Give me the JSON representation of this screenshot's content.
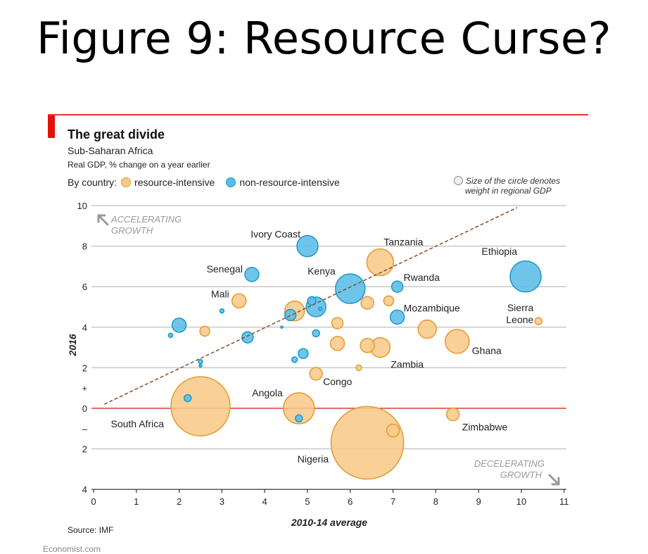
{
  "slide": {
    "title": "Figure 9: Resource Curse?"
  },
  "header": {
    "title": "The great divide",
    "subtitle": "Sub-Saharan Africa",
    "measure": "Real GDP, % change on a year earlier",
    "legend_prefix": "By country:",
    "legend_resource": "resource-intensive",
    "legend_nonresource": "non-resource-intensive",
    "size_note_line1": "Size of the circle denotes",
    "size_note_line2": "weight in regional GDP"
  },
  "footer": {
    "source": "Source: IMF",
    "credit": "Economist.com"
  },
  "colors": {
    "resource_fill": "#f7c98a",
    "resource_stroke": "#e39b2d",
    "nonresource_fill": "#5bbde6",
    "nonresource_stroke": "#1a98c9",
    "zero_line": "#e3362f",
    "trend_line": "#8a4a22",
    "grid": "#c8c8c8",
    "annotation_grey": "#9a9a9a"
  },
  "chart_data": {
    "type": "scatter",
    "xlabel": "2010-14 average",
    "ylabel": "2016",
    "xlim": [
      0,
      11
    ],
    "ylim": [
      -4,
      10
    ],
    "x_ticks": [
      "0",
      "1",
      "2",
      "3",
      "4",
      "5",
      "6",
      "7",
      "8",
      "9",
      "10",
      "11"
    ],
    "y_ticks": [
      {
        "value": 10,
        "label": "10"
      },
      {
        "value": 8,
        "label": "8"
      },
      {
        "value": 6,
        "label": "6"
      },
      {
        "value": 4,
        "label": "4"
      },
      {
        "value": 2,
        "label": "2"
      },
      {
        "value": 1,
        "label": "+"
      },
      {
        "value": 0,
        "label": "0"
      },
      {
        "value": -1,
        "label": "–"
      },
      {
        "value": -2,
        "label": "2"
      },
      {
        "value": -4,
        "label": "4"
      }
    ],
    "grid": true,
    "annotations": {
      "accelerating": [
        "ACCELERATING",
        "GROWTH"
      ],
      "decelerating": [
        "DECELERATING",
        "GROWTH"
      ]
    },
    "series": [
      {
        "name": "resource-intensive",
        "points": [
          {
            "x": 2.5,
            "y": 0.1,
            "w": 42.0,
            "label": "South Africa"
          },
          {
            "x": 6.4,
            "y": -1.7,
            "w": 51.6,
            "label": "Nigeria"
          },
          {
            "x": 4.8,
            "y": 0.0,
            "w": 22.0,
            "label": "Angola"
          },
          {
            "x": 6.7,
            "y": 7.2,
            "w": 19.0,
            "label": "Tanzania"
          },
          {
            "x": 8.5,
            "y": 3.3,
            "w": 17.0,
            "label": "Ghana"
          },
          {
            "x": 6.7,
            "y": 3.0,
            "w": 14.0,
            "label": "Zambia"
          },
          {
            "x": 7.8,
            "y": 3.9,
            "w": 13.0,
            "label": ""
          },
          {
            "x": 4.7,
            "y": 4.8,
            "w": 14.0,
            "label": ""
          },
          {
            "x": 3.4,
            "y": 5.3,
            "w": 10.0,
            "label": "Mali"
          },
          {
            "x": 5.7,
            "y": 3.2,
            "w": 10.0,
            "label": ""
          },
          {
            "x": 6.4,
            "y": 3.1,
            "w": 10.0,
            "label": ""
          },
          {
            "x": 6.4,
            "y": 5.2,
            "w": 9.0,
            "label": ""
          },
          {
            "x": 5.2,
            "y": 1.7,
            "w": 9.0,
            "label": "Congo"
          },
          {
            "x": 5.7,
            "y": 4.2,
            "w": 8.0,
            "label": ""
          },
          {
            "x": 6.9,
            "y": 5.3,
            "w": 7.0,
            "label": ""
          },
          {
            "x": 2.6,
            "y": 3.8,
            "w": 7.0,
            "label": ""
          },
          {
            "x": 8.4,
            "y": -0.3,
            "w": 9.0,
            "label": "Zimbabwe"
          },
          {
            "x": 7.0,
            "y": -1.1,
            "w": 9.0,
            "label": ""
          },
          {
            "x": 10.4,
            "y": 4.3,
            "w": 5.0,
            "label": "Sierra Leone"
          },
          {
            "x": 6.2,
            "y": 2.0,
            "w": 4.0,
            "label": ""
          }
        ]
      },
      {
        "name": "non-resource-intensive",
        "points": [
          {
            "x": 10.1,
            "y": 6.5,
            "w": 22.0,
            "label": "Ethiopia"
          },
          {
            "x": 6.0,
            "y": 5.9,
            "w": 21.0,
            "label": "Kenya"
          },
          {
            "x": 5.0,
            "y": 8.0,
            "w": 15.0,
            "label": "Ivory Coast"
          },
          {
            "x": 5.2,
            "y": 5.0,
            "w": 14.0,
            "label": ""
          },
          {
            "x": 3.7,
            "y": 6.6,
            "w": 10.0,
            "label": "Senegal"
          },
          {
            "x": 2.0,
            "y": 4.1,
            "w": 10.0,
            "label": ""
          },
          {
            "x": 7.1,
            "y": 4.5,
            "w": 10.0,
            "label": "Mozambique"
          },
          {
            "x": 7.1,
            "y": 6.0,
            "w": 8.0,
            "label": "Rwanda"
          },
          {
            "x": 3.6,
            "y": 3.5,
            "w": 8.0,
            "label": ""
          },
          {
            "x": 4.6,
            "y": 4.6,
            "w": 8.0,
            "label": ""
          },
          {
            "x": 4.9,
            "y": 2.7,
            "w": 7.0,
            "label": ""
          },
          {
            "x": 5.1,
            "y": 5.3,
            "w": 6.0,
            "label": ""
          },
          {
            "x": 5.2,
            "y": 3.7,
            "w": 5.0,
            "label": ""
          },
          {
            "x": 2.2,
            "y": 0.5,
            "w": 5.0,
            "label": ""
          },
          {
            "x": 4.8,
            "y": -0.5,
            "w": 5.0,
            "label": ""
          },
          {
            "x": 4.7,
            "y": 2.4,
            "w": 4.0,
            "label": ""
          },
          {
            "x": 2.5,
            "y": 2.3,
            "w": 3.0,
            "label": ""
          },
          {
            "x": 1.8,
            "y": 3.6,
            "w": 3.0,
            "label": ""
          },
          {
            "x": 3.0,
            "y": 4.8,
            "w": 3.0,
            "label": ""
          },
          {
            "x": 5.3,
            "y": 4.9,
            "w": 2.5,
            "label": ""
          },
          {
            "x": 2.5,
            "y": 2.1,
            "w": 2.0,
            "label": ""
          },
          {
            "x": 4.4,
            "y": 4.0,
            "w": 1.5,
            "label": ""
          }
        ]
      }
    ],
    "trend_line": {
      "style": "dashed",
      "x": [
        0.25,
        9.9
      ],
      "y": [
        0.2,
        9.9
      ]
    }
  }
}
